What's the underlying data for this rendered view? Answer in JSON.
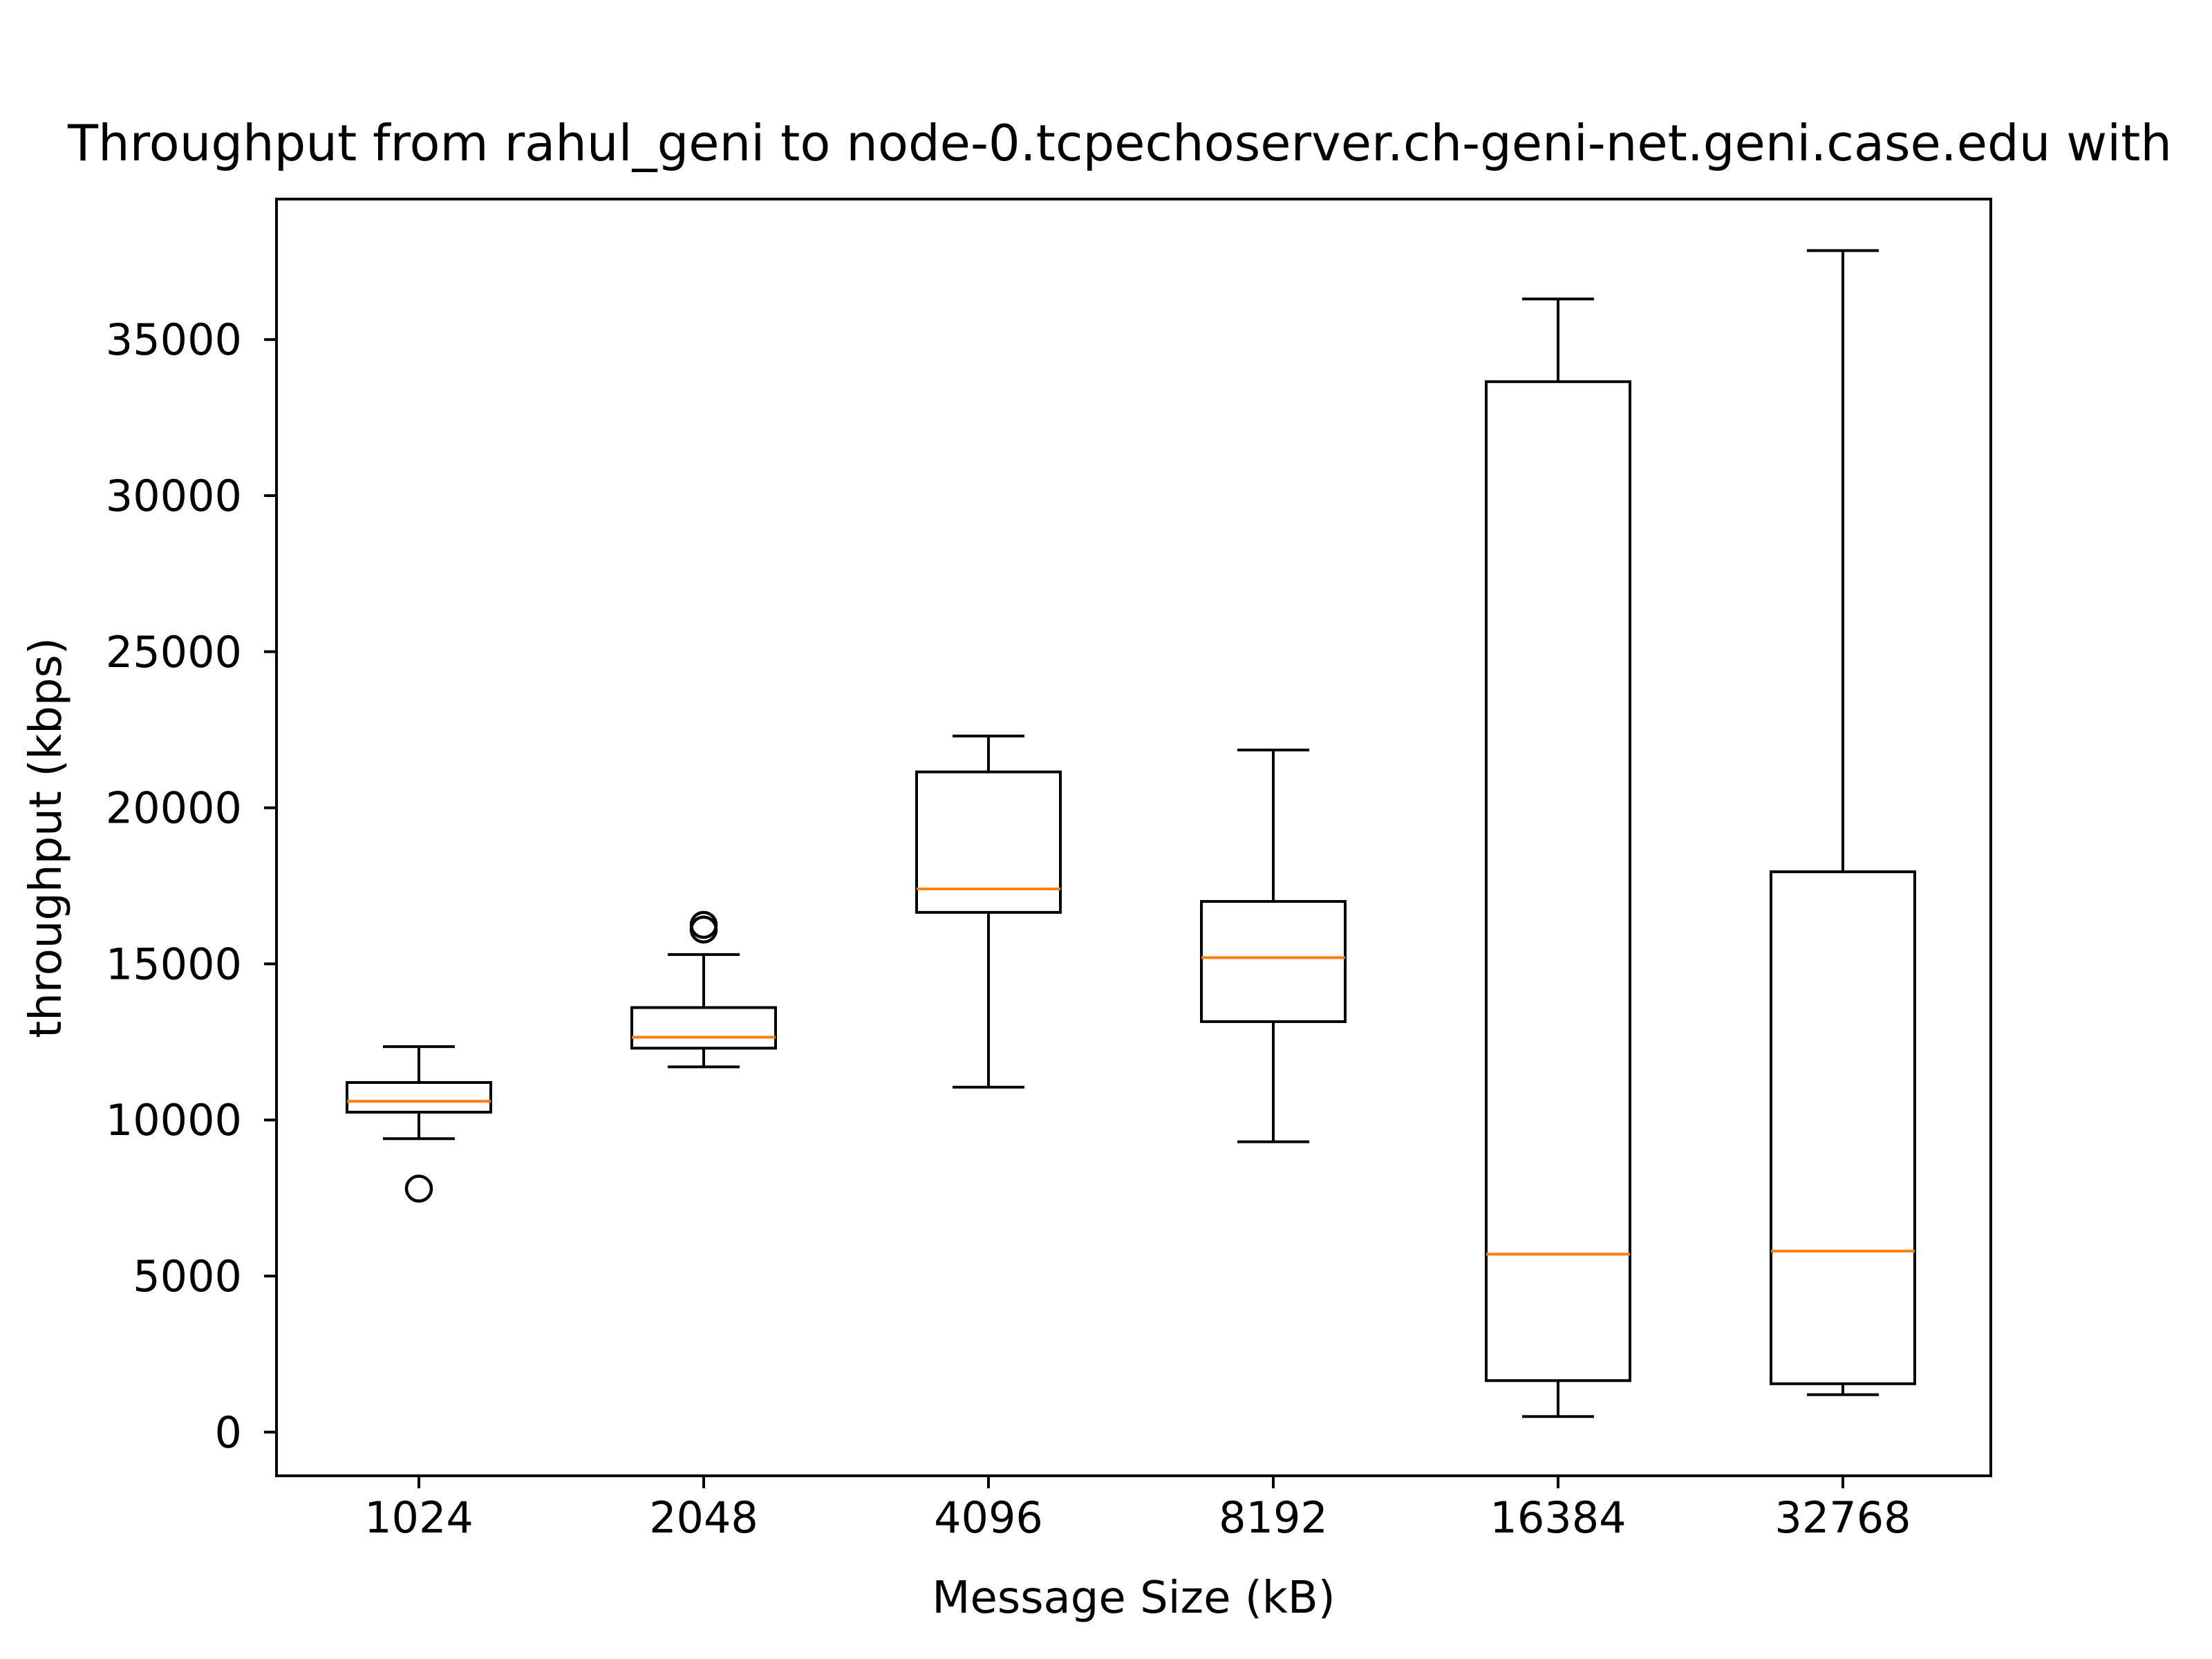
{
  "chart_data": {
    "type": "box",
    "title": "Throughput from rahul_geni to node-0.tcpechoserver.ch-geni-net.geni.case.edu with",
    "xlabel": "Message Size (kB)",
    "ylabel": "throughput (kbps)",
    "ylim": [
      -1400,
      39500
    ],
    "yticks": [
      0,
      5000,
      10000,
      15000,
      20000,
      25000,
      30000,
      35000
    ],
    "ytick_labels": [
      "0",
      "5000",
      "10000",
      "15000",
      "20000",
      "25000",
      "30000",
      "35000"
    ],
    "categories": [
      "1024",
      "2048",
      "4096",
      "8192",
      "16384",
      "32768"
    ],
    "boxes": [
      {
        "label": "1024",
        "whisker_low": 9400,
        "q1": 10250,
        "median": 10600,
        "q3": 11200,
        "whisker_high": 12350,
        "outliers": [
          7800
        ]
      },
      {
        "label": "2048",
        "whisker_low": 11700,
        "q1": 12300,
        "median": 12650,
        "q3": 13600,
        "whisker_high": 15300,
        "outliers": [
          16100,
          16250
        ]
      },
      {
        "label": "4096",
        "whisker_low": 11050,
        "q1": 16650,
        "median": 17400,
        "q3": 21150,
        "whisker_high": 22300,
        "outliers": []
      },
      {
        "label": "8192",
        "whisker_low": 9300,
        "q1": 13150,
        "median": 15200,
        "q3": 17000,
        "whisker_high": 21850,
        "outliers": []
      },
      {
        "label": "16384",
        "whisker_low": 500,
        "q1": 1650,
        "median": 5700,
        "q3": 33650,
        "whisker_high": 36300,
        "outliers": []
      },
      {
        "label": "32768",
        "whisker_low": 1200,
        "q1": 1550,
        "median": 5800,
        "q3": 17950,
        "whisker_high": 37850,
        "outliers": []
      }
    ],
    "colors": {
      "box": "#000000",
      "median": "#ff7f0e",
      "background": "#ffffff"
    }
  }
}
